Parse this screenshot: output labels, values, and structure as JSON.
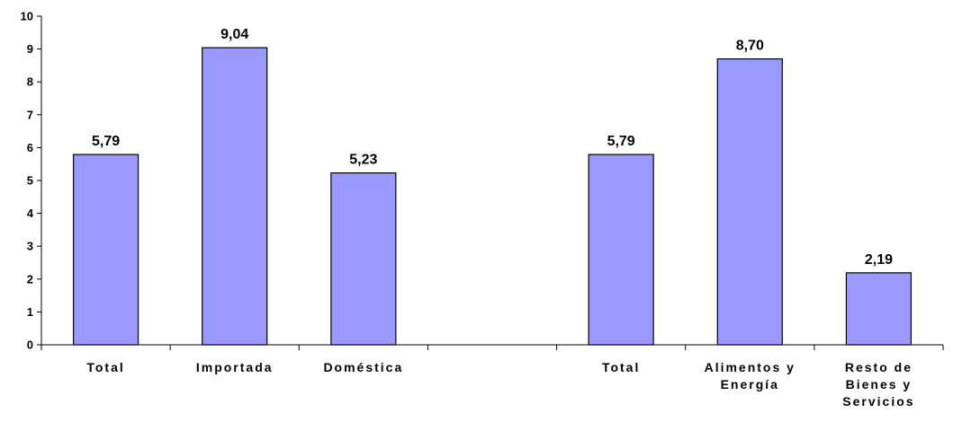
{
  "chart_data": {
    "type": "bar",
    "categories": [
      "Total",
      "Importada",
      "Doméstica",
      "",
      "Total",
      "Alimentos y\nEnergía",
      "Resto de\nBienes y\nServicios"
    ],
    "values": [
      5.79,
      9.04,
      5.23,
      null,
      5.79,
      8.7,
      2.19
    ],
    "data_labels": [
      "5,79",
      "9,04",
      "5,23",
      "",
      "5,79",
      "8,70",
      "2,19"
    ],
    "ylim": [
      0,
      10
    ],
    "yticks": [
      "0",
      "1",
      "2",
      "3",
      "4",
      "5",
      "6",
      "7",
      "8",
      "9",
      "10"
    ],
    "grid": false,
    "legend": "none",
    "title": "",
    "xlabel": "",
    "ylabel": "",
    "colors": {
      "bar_fill": "#9999ff",
      "bar_stroke": "#000000",
      "axis": "#000000",
      "text": "#000000"
    }
  }
}
